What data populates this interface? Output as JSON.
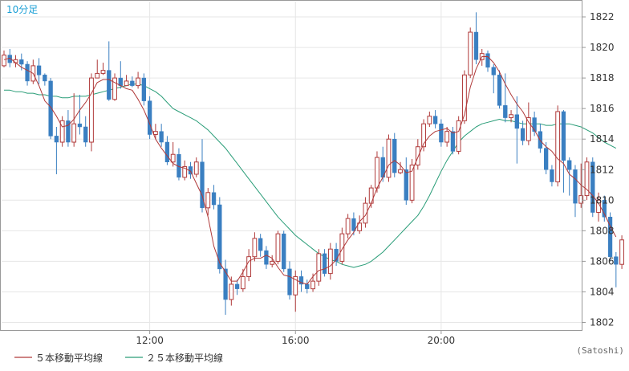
{
  "timeframe_label": "10分足",
  "credit": "(Satoshi)",
  "legend": [
    {
      "label": "５本移動平均線",
      "color": "#b03a3a"
    },
    {
      "label": "２５本移動平均線",
      "color": "#2a9d78"
    }
  ],
  "colors": {
    "up": "#b03a3a",
    "down": "#3a7fc1",
    "grid": "#e6e6e6",
    "axis": "#999999"
  },
  "chart_data": {
    "type": "candlestick",
    "ylim": [
      1801.5,
      1823
    ],
    "y_ticks": [
      1802,
      1804,
      1806,
      1808,
      1810,
      1812,
      1814,
      1816,
      1818,
      1820,
      1822
    ],
    "y_tick_labels": [
      "1802",
      "1804",
      "1806",
      "1808",
      "1810",
      "1812",
      "1814",
      "1816",
      "1818",
      "1820",
      "1822"
    ],
    "x_ticks": [
      {
        "index": 25,
        "label": "12:00"
      },
      {
        "index": 50,
        "label": "16:00"
      },
      {
        "index": 75,
        "label": "20:00"
      }
    ],
    "candles": [
      [
        1818.8,
        1819.5,
        1818.7,
        1819.8
      ],
      [
        1819.5,
        1819.0,
        1818.7,
        1819.9
      ],
      [
        1819.0,
        1819.2,
        1818.7,
        1819.5
      ],
      [
        1819.2,
        1818.9,
        1818.5,
        1819.6
      ],
      [
        1818.9,
        1817.8,
        1817.5,
        1819.1
      ],
      [
        1817.8,
        1818.8,
        1817.6,
        1819.2
      ],
      [
        1818.8,
        1818.2,
        1817.6,
        1819.3
      ],
      [
        1818.2,
        1817.8,
        1817.5,
        1818.3
      ],
      [
        1817.8,
        1814.2,
        1814.0,
        1818.0
      ],
      [
        1814.2,
        1813.8,
        1811.7,
        1814.8
      ],
      [
        1813.8,
        1815.2,
        1813.5,
        1815.5
      ],
      [
        1815.2,
        1813.8,
        1813.5,
        1815.9
      ],
      [
        1813.8,
        1815.0,
        1813.5,
        1817.0
      ],
      [
        1815.0,
        1814.8,
        1814.3,
        1816.9
      ],
      [
        1814.8,
        1813.8,
        1813.5,
        1815.5
      ],
      [
        1813.8,
        1818.0,
        1813.2,
        1818.3
      ],
      [
        1818.0,
        1818.3,
        1818.0,
        1819.2
      ],
      [
        1818.3,
        1818.5,
        1818.2,
        1819.0
      ],
      [
        1818.5,
        1816.6,
        1816.5,
        1820.4
      ],
      [
        1816.6,
        1818.0,
        1816.5,
        1818.3
      ],
      [
        1818.0,
        1817.5,
        1817.3,
        1819.1
      ],
      [
        1817.5,
        1817.8,
        1817.5,
        1818.2
      ],
      [
        1817.8,
        1817.5,
        1817.4,
        1818.1
      ],
      [
        1817.5,
        1818.0,
        1817.3,
        1818.4
      ],
      [
        1818.0,
        1816.5,
        1816.2,
        1818.3
      ],
      [
        1816.5,
        1814.3,
        1814.0,
        1816.8
      ],
      [
        1814.3,
        1814.5,
        1814.0,
        1815.0
      ],
      [
        1814.5,
        1813.8,
        1813.5,
        1815.0
      ],
      [
        1813.8,
        1812.5,
        1812.3,
        1814.2
      ],
      [
        1812.5,
        1813.0,
        1812.2,
        1813.8
      ],
      [
        1813.0,
        1811.5,
        1811.3,
        1813.4
      ],
      [
        1811.5,
        1812.2,
        1811.3,
        1812.6
      ],
      [
        1812.2,
        1811.7,
        1811.4,
        1812.5
      ],
      [
        1811.7,
        1812.5,
        1811.5,
        1812.8
      ],
      [
        1812.5,
        1809.5,
        1809.2,
        1814.0
      ],
      [
        1809.5,
        1810.5,
        1809.0,
        1810.8
      ],
      [
        1810.5,
        1809.7,
        1809.4,
        1811.0
      ],
      [
        1809.7,
        1805.5,
        1805.2,
        1810.2
      ],
      [
        1805.5,
        1803.5,
        1802.5,
        1806.1
      ],
      [
        1803.5,
        1804.5,
        1803.1,
        1805.0
      ],
      [
        1804.5,
        1804.2,
        1803.8,
        1804.8
      ],
      [
        1804.2,
        1805.0,
        1804.0,
        1805.5
      ],
      [
        1805.0,
        1806.3,
        1804.7,
        1806.8
      ],
      [
        1806.3,
        1807.5,
        1806.0,
        1807.9
      ],
      [
        1807.5,
        1806.7,
        1806.3,
        1807.8
      ],
      [
        1806.7,
        1805.8,
        1805.5,
        1807.0
      ],
      [
        1805.8,
        1806.0,
        1805.6,
        1806.4
      ],
      [
        1806.0,
        1807.8,
        1805.8,
        1808.0
      ],
      [
        1807.8,
        1805.5,
        1805.3,
        1808.0
      ],
      [
        1805.5,
        1803.8,
        1803.5,
        1806.0
      ],
      [
        1803.8,
        1805.0,
        1802.7,
        1805.4
      ],
      [
        1805.0,
        1804.5,
        1804.0,
        1805.4
      ],
      [
        1804.5,
        1804.2,
        1803.9,
        1804.8
      ],
      [
        1804.2,
        1804.7,
        1804.0,
        1805.2
      ],
      [
        1804.7,
        1806.5,
        1804.4,
        1806.8
      ],
      [
        1806.5,
        1805.2,
        1805.0,
        1806.8
      ],
      [
        1805.2,
        1806.8,
        1804.8,
        1807.2
      ],
      [
        1806.8,
        1806.0,
        1805.7,
        1807.2
      ],
      [
        1806.0,
        1807.8,
        1805.8,
        1808.2
      ],
      [
        1807.8,
        1808.8,
        1807.5,
        1809.1
      ],
      [
        1808.8,
        1808.0,
        1807.7,
        1809.2
      ],
      [
        1808.0,
        1808.5,
        1807.8,
        1809.0
      ],
      [
        1808.5,
        1809.8,
        1808.2,
        1810.2
      ],
      [
        1809.8,
        1810.8,
        1809.5,
        1811.0
      ],
      [
        1810.8,
        1812.8,
        1810.5,
        1813.2
      ],
      [
        1812.8,
        1811.5,
        1811.2,
        1813.5
      ],
      [
        1811.5,
        1814.0,
        1811.2,
        1814.3
      ],
      [
        1814.0,
        1811.8,
        1811.5,
        1814.4
      ],
      [
        1811.8,
        1812.0,
        1811.7,
        1812.5
      ],
      [
        1812.0,
        1810.0,
        1809.7,
        1812.8
      ],
      [
        1810.0,
        1812.3,
        1809.8,
        1812.7
      ],
      [
        1812.3,
        1813.5,
        1812.0,
        1814.0
      ],
      [
        1813.5,
        1815.0,
        1813.2,
        1815.3
      ],
      [
        1815.0,
        1815.5,
        1814.8,
        1815.8
      ],
      [
        1815.5,
        1815.0,
        1814.7,
        1815.9
      ],
      [
        1815.0,
        1813.8,
        1813.5,
        1815.3
      ],
      [
        1813.8,
        1814.5,
        1813.5,
        1814.8
      ],
      [
        1814.5,
        1813.2,
        1813.0,
        1814.8
      ],
      [
        1813.2,
        1815.2,
        1813.0,
        1815.5
      ],
      [
        1815.2,
        1818.2,
        1815.0,
        1818.5
      ],
      [
        1818.2,
        1821.0,
        1818.0,
        1821.3
      ],
      [
        1821.0,
        1819.2,
        1818.9,
        1822.3
      ],
      [
        1819.2,
        1819.6,
        1818.8,
        1819.9
      ],
      [
        1819.6,
        1818.7,
        1818.4,
        1819.8
      ],
      [
        1818.7,
        1818.2,
        1817.0,
        1818.9
      ],
      [
        1818.2,
        1816.2,
        1816.0,
        1818.5
      ],
      [
        1816.2,
        1815.4,
        1815.1,
        1818.3
      ],
      [
        1815.4,
        1815.6,
        1815.1,
        1815.9
      ],
      [
        1815.6,
        1814.7,
        1812.4,
        1816.8
      ],
      [
        1814.7,
        1813.9,
        1813.6,
        1815.2
      ],
      [
        1813.9,
        1815.4,
        1813.6,
        1816.4
      ],
      [
        1815.4,
        1814.5,
        1814.2,
        1815.8
      ],
      [
        1814.5,
        1813.4,
        1813.1,
        1815.0
      ],
      [
        1813.4,
        1812.0,
        1811.7,
        1813.8
      ],
      [
        1812.0,
        1811.2,
        1810.9,
        1812.3
      ],
      [
        1811.2,
        1815.8,
        1810.9,
        1816.2
      ],
      [
        1815.8,
        1812.6,
        1810.5,
        1815.9
      ],
      [
        1812.6,
        1812.0,
        1810.3,
        1812.8
      ],
      [
        1812.0,
        1809.8,
        1808.9,
        1812.3
      ],
      [
        1809.8,
        1810.3,
        1809.5,
        1812.4
      ],
      [
        1810.3,
        1812.5,
        1810.0,
        1812.8
      ],
      [
        1812.5,
        1809.2,
        1808.9,
        1812.8
      ],
      [
        1809.2,
        1810.0,
        1808.6,
        1810.5
      ],
      [
        1810.0,
        1808.9,
        1808.6,
        1810.3
      ],
      [
        1808.9,
        1806.3,
        1806.0,
        1809.2
      ],
      [
        1806.3,
        1805.8,
        1804.3,
        1806.6
      ],
      [
        1805.8,
        1807.4,
        1805.5,
        1807.7
      ]
    ],
    "ma5": [
      1819.2,
      1819.3,
      1819.0,
      1818.7,
      1818.5,
      1818.3,
      1817.5,
      1816.5,
      1816.1,
      1815.5,
      1814.8,
      1814.9,
      1815.3,
      1815.9,
      1816.4,
      1817.0,
      1817.7,
      1817.9,
      1817.9,
      1817.7,
      1817.5,
      1817.3,
      1817.2,
      1816.6,
      1815.9,
      1815.0,
      1814.0,
      1813.4,
      1812.9,
      1812.4,
      1812.2,
      1812.1,
      1811.9,
      1811.1,
      1810.3,
      1808.9,
      1807.0,
      1805.9,
      1805.3,
      1804.7,
      1804.7,
      1805.3,
      1806.0,
      1806.2,
      1806.2,
      1806.4,
      1806.2,
      1805.6,
      1805.1,
      1805.0,
      1804.8,
      1804.6,
      1804.5,
      1805.0,
      1805.4,
      1805.5,
      1805.7,
      1806.1,
      1806.8,
      1807.4,
      1807.9,
      1808.6,
      1809.0,
      1809.8,
      1810.8,
      1811.5,
      1812.3,
      1812.6,
      1812.3,
      1811.8,
      1811.9,
      1812.8,
      1813.7,
      1814.2,
      1814.5,
      1814.6,
      1814.7,
      1814.4,
      1814.5,
      1815.6,
      1817.4,
      1818.6,
      1819.4,
      1819.4,
      1819.0,
      1818.4,
      1817.6,
      1816.9,
      1816.3,
      1815.8,
      1815.1,
      1814.6,
      1813.9,
      1813.5,
      1813.2,
      1812.7,
      1812.4,
      1811.7,
      1811.4,
      1811.0,
      1810.7,
      1810.3,
      1809.8,
      1809.1,
      1808.3,
      1807.6
    ],
    "ma25": [
      1817.2,
      1817.2,
      1817.1,
      1817.1,
      1817.0,
      1817.0,
      1816.9,
      1816.9,
      1816.8,
      1816.8,
      1816.7,
      1816.7,
      1816.8,
      1816.8,
      1816.8,
      1816.9,
      1817.0,
      1817.1,
      1817.2,
      1817.3,
      1817.4,
      1817.5,
      1817.6,
      1817.6,
      1817.5,
      1817.3,
      1817.1,
      1816.8,
      1816.4,
      1816.0,
      1815.8,
      1815.6,
      1815.4,
      1815.2,
      1814.9,
      1814.6,
      1814.2,
      1813.8,
      1813.4,
      1812.9,
      1812.4,
      1811.9,
      1811.4,
      1810.9,
      1810.4,
      1809.9,
      1809.4,
      1808.9,
      1808.5,
      1808.1,
      1807.7,
      1807.4,
      1807.1,
      1806.8,
      1806.5,
      1806.3,
      1806.1,
      1806.0,
      1805.8,
      1805.7,
      1805.6,
      1805.7,
      1805.8,
      1806.0,
      1806.3,
      1806.6,
      1807.0,
      1807.4,
      1807.8,
      1808.2,
      1808.6,
      1809.0,
      1809.6,
      1810.3,
      1811.1,
      1811.9,
      1812.6,
      1813.2,
      1813.8,
      1814.2,
      1814.5,
      1814.8,
      1815.0,
      1815.1,
      1815.2,
      1815.3,
      1815.2,
      1815.2,
      1815.1,
      1815.0,
      1815.0,
      1815.0,
      1815.0,
      1814.9,
      1814.9,
      1815.0,
      1815.0,
      1815.0,
      1814.9,
      1814.8,
      1814.6,
      1814.4,
      1814.1,
      1813.8,
      1813.6,
      1813.4
    ]
  }
}
